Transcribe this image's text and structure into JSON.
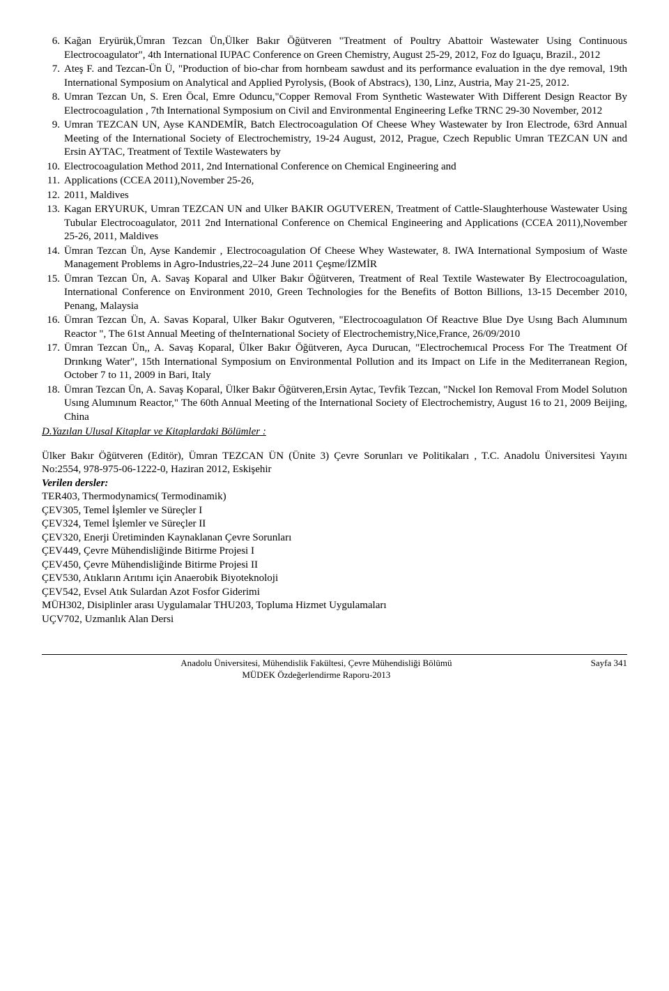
{
  "items": [
    {
      "n": "6.",
      "t": "Kağan Eryürük,Ümran Tezcan Ün,Ülker Bakır Öğütveren \"Treatment of Poultry Abattoir Wastewater Using Continuous Electrocoagulator\", 4th International IUPAC Conference on Green Chemistry, August 25-29, 2012, Foz do Iguaçu, Brazil., 2012"
    },
    {
      "n": "7.",
      "t": "Ateş F. and Tezcan-Ün Ü, \"Production of bio-char from hornbeam sawdust and its performance evaluation in the dye removal, 19th International Symposium on Analytical and Applied Pyrolysis, (Book of Abstracs), 130, Linz, Austria, May 21-25, 2012."
    },
    {
      "n": "8.",
      "t": "Umran Tezcan Un, S. Eren Öcal, Emre Oduncu,\"Copper Removal From Synthetic Wastewater With Different Design Reactor By Electrocoagulation , 7th International Symposium on Civil and Environmental Engineering  Lefke TRNC  29-30 November, 2012"
    },
    {
      "n": "9.",
      "t": "Umran TEZCAN UN, Ayse KANDEMİR, Batch Electrocoagulation Of Cheese Whey Wastewater by Iron Electrode, 63rd Annual Meeting of the International Society of Electrochemistry, 19-24 August, 2012, Prague, Czech Republic Umran TEZCAN UN and Ersin AYTAC, Treatment of Textile Wastewaters by"
    },
    {
      "n": "10.",
      "t": "Electrocoagulation Method 2011, 2nd International Conference on Chemical Engineering and"
    },
    {
      "n": "11.",
      "t": "Applications (CCEA 2011),November 25-26,"
    },
    {
      "n": "12.",
      "t": "2011, Maldives"
    },
    {
      "n": "13.",
      "t": "Kagan ERYURUK, Umran TEZCAN UN and Ulker BAKIR OGUTVEREN, Treatment of Cattle-Slaughterhouse Wastewater Using Tubular Electrocoagulator, 2011 2nd International Conference on Chemical Engineering and Applications (CCEA 2011),November 25-26, 2011, Maldives"
    },
    {
      "n": "14.",
      "t": "Ümran Tezcan Ün, Ayse Kandemir , Electrocoagulation Of Cheese Whey Wastewater, 8. IWA International Symposium of Waste Management Problems in Agro-Industries,22–24 June 2011 Çeşme/İZMİR"
    },
    {
      "n": "15.",
      "t": "Ümran Tezcan Ün, A. Savaş Koparal and Ulker Bakır Öğütveren, Treatment of Real Textile Wastewater By Electrocoagulation, International Conference on Environment 2010, Green Technologies for the Benefits of Botton Billions, 13-15 December 2010, Penang, Malaysia"
    },
    {
      "n": "16.",
      "t": "Ümran Tezcan Ün, A. Savas Koparal, Ulker Bakır Ogutveren, \"Electrocoagulatıon Of Reactıve Blue Dye Usıng Bach Alumınum Reactor \", The 61st Annual Meeting of theInternational Society of Electrochemistry,Nice,France, 26/09/2010"
    },
    {
      "n": "17.",
      "t": "Ümran Tezcan Ün,, A. Savaş Koparal, Ülker Bakır Öğütveren, Ayca Durucan, \"Electrochemıcal Process For The Treatment Of Drınkıng Water\", 15th International Symposium on Environmental Pollution and its Impact on Life in the Mediterranean Region, October 7 to 11, 2009 in Bari, Italy"
    },
    {
      "n": "18.",
      "t": "Ümran Tezcan Ün, A. Savaş Koparal, Ülker Bakır Öğütveren,Ersin Aytac, Tevfik Tezcan, \"Nıckel Ion Removal From Model Solutıon Usıng Alumınum Reactor,\" The 60th Annual Meeting of the International Society of Electrochemistry, August 16 to 21, 2009 Beijing, China"
    }
  ],
  "sectionD": "D.Yazılan Ulusal Kitaplar ve Kitaplardaki Bölümler :",
  "bookLine1": "Ülker Bakır Öğütveren (Editör), Ümran TEZCAN ÜN (Ünite 3) Çevre Sorunları ve Politikaları , T.C. Anadolu Üniversitesi Yayını No:2554, 978-975-06-1222-0, Haziran 2012, Eskişehir",
  "coursesHead": "Verilen dersler:",
  "courses": [
    "TER403, Thermodynamics( Termodinamik)",
    "ÇEV305, Temel İşlemler ve Süreçler I",
    "ÇEV324, Temel İşlemler ve Süreçler II",
    "ÇEV320, Enerji Üretiminden Kaynaklanan Çevre Sorunları",
    "ÇEV449, Çevre Mühendisliğinde Bitirme Projesi I",
    "ÇEV450, Çevre Mühendisliğinde Bitirme Projesi II",
    "ÇEV530, Atıkların Arıtımı için Anaerobik Biyoteknoloji",
    "ÇEV542, Evsel Atık Sulardan Azot Fosfor Giderimi",
    "MÜH302, Disiplinler arası Uygulamalar THU203, Topluma Hizmet Uygulamaları",
    "UÇV702, Uzmanlık Alan Dersi"
  ],
  "footerLeft1": "Anadolu Üniversitesi, Mühendislik Fakültesi, Çevre Mühendisliği Bölümü",
  "footerLeft2": "MÜDEK Özdeğerlendirme Raporu-2013",
  "footerRight": "Sayfa 341"
}
